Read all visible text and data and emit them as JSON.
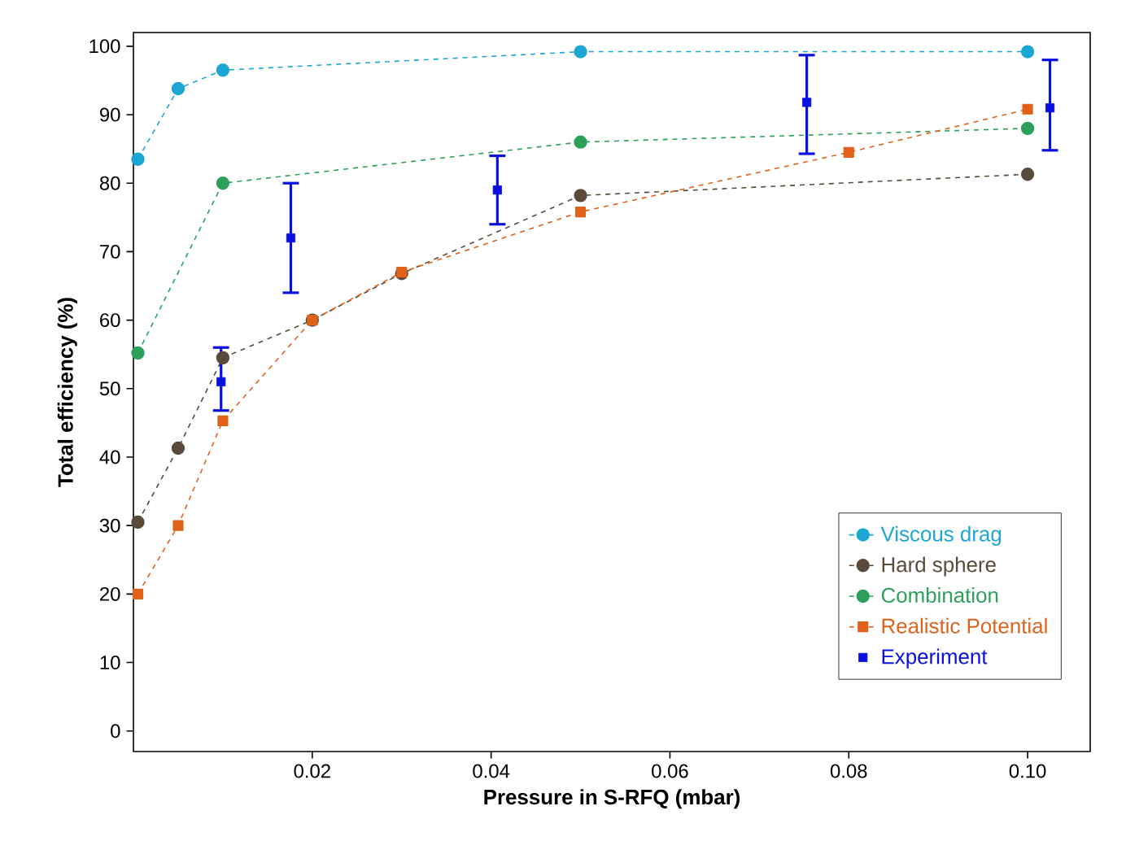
{
  "chart_data": {
    "type": "line",
    "xlabel": "Pressure in S-RFQ (mbar)",
    "ylabel": "Total efficiency (%)",
    "xlim": [
      0,
      0.107
    ],
    "ylim": [
      -3,
      102
    ],
    "xticks": [
      0.02,
      0.04,
      0.06,
      0.08,
      {
        "value": 0.1,
        "label": "0.10"
      }
    ],
    "yticks": [
      0,
      10,
      20,
      30,
      40,
      50,
      60,
      70,
      80,
      90,
      100
    ],
    "legend": "bottom right",
    "line_style": "dashed",
    "series": [
      {
        "name": "Viscous drag",
        "color": "#1ba6d3",
        "marker": "circle",
        "x": [
          0.0005,
          0.005,
          0.01,
          0.05,
          0.1
        ],
        "values": [
          83.5,
          93.8,
          96.5,
          99.2,
          99.2
        ]
      },
      {
        "name": "Hard sphere",
        "color": "#5a4a3a",
        "marker": "circle",
        "x": [
          0.0005,
          0.005,
          0.01,
          0.02,
          0.03,
          0.05,
          0.1
        ],
        "values": [
          30.5,
          41.3,
          54.5,
          60,
          66.8,
          78.2,
          81.3
        ]
      },
      {
        "name": "Combination",
        "color": "#2ca05a",
        "marker": "circle",
        "x": [
          0.0005,
          0.01,
          0.05,
          0.1
        ],
        "values": [
          55.2,
          80,
          86,
          88
        ]
      },
      {
        "name": "Realistic Potential",
        "color": "#e0621a",
        "marker": "square",
        "x": [
          0.0005,
          0.005,
          0.01,
          0.02,
          0.03,
          0.05,
          0.08,
          0.1
        ],
        "values": [
          20,
          30,
          45.3,
          60,
          67,
          75.8,
          84.5,
          90.8
        ]
      },
      {
        "name": "Experiment",
        "type": "scatter",
        "color": "#0a10e0",
        "marker": "square",
        "x": [
          0.0098,
          0.0176,
          0.0407,
          0.0753,
          0.1025
        ],
        "values": [
          51,
          72,
          79,
          91.8,
          91
        ],
        "errors": [
          [
            46.8,
            56
          ],
          [
            64,
            80
          ],
          [
            74,
            84
          ],
          [
            84.3,
            98.7
          ],
          [
            84.8,
            98
          ]
        ]
      }
    ]
  }
}
